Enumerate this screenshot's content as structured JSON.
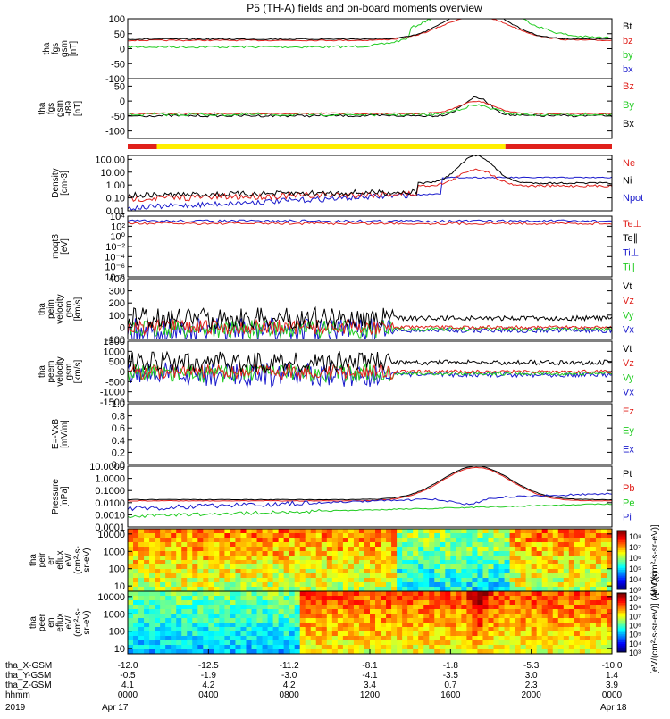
{
  "title": "P5 (TH-A) fields and on-board moments overview",
  "colors": {
    "black": "#000000",
    "red": "#e0201b",
    "green": "#22cc22",
    "blue": "#1a1acc",
    "yellow": "#ffee00"
  },
  "chart_data": [
    {
      "id": "fgs_gsm",
      "type": "line",
      "ylabel": [
        "tha",
        "fgs",
        "gsm",
        "[nT]"
      ],
      "ylim": [
        -100,
        100
      ],
      "yticks": [
        "100",
        "50",
        "0",
        "-50",
        "-100"
      ],
      "yticks_values": [
        100,
        50,
        0,
        -50,
        -100
      ],
      "legend": [
        {
          "label": "Bt",
          "color": "black"
        },
        {
          "label": "bz",
          "color": "red"
        },
        {
          "label": "by",
          "color": "green"
        },
        {
          "label": "bx",
          "color": "blue"
        }
      ]
    },
    {
      "id": "fgs_gsm_t89",
      "type": "line",
      "ylabel": [
        "tha",
        "fgs",
        "gsm",
        "-t89",
        "[nT]"
      ],
      "ylim": [
        -125,
        75
      ],
      "yticks": [
        "50",
        "0",
        "-50",
        "-100"
      ],
      "yticks_values": [
        50,
        0,
        -50,
        -100
      ],
      "legend": [
        {
          "label": "Bz",
          "color": "red"
        },
        {
          "label": "By",
          "color": "green"
        },
        {
          "label": "Bx",
          "color": "black"
        }
      ]
    },
    {
      "id": "density",
      "type": "line",
      "scale": "log",
      "ylabel": [
        "Density",
        "[cm-3]"
      ],
      "ylim": [
        0.01,
        200
      ],
      "yticks": [
        "100.00",
        "10.00",
        "1.00",
        "0.10",
        "0.01"
      ],
      "yticks_values": [
        100,
        10,
        1,
        0.1,
        0.01
      ],
      "legend": [
        {
          "label": "Ne",
          "color": "red"
        },
        {
          "label": "Ni",
          "color": "black"
        },
        {
          "label": "Npot",
          "color": "blue"
        }
      ]
    },
    {
      "id": "temperature",
      "type": "line",
      "scale": "log",
      "ylabel": [
        "moqt3",
        "[eV]"
      ],
      "ylim": [
        1e-08,
        10000.0
      ],
      "yticks": [
        "10⁴",
        "10²",
        "10⁰",
        "10⁻²",
        "10⁻⁴",
        "10⁻⁶",
        "10⁻⁸"
      ],
      "yticks_values": [
        4,
        2,
        0,
        -2,
        -4,
        -6,
        -8
      ],
      "legend": [
        {
          "label": "Te⊥",
          "color": "red"
        },
        {
          "label": "Te∥",
          "color": "black"
        },
        {
          "label": "Ti⊥",
          "color": "blue"
        },
        {
          "label": "Ti∥",
          "color": "green"
        }
      ]
    },
    {
      "id": "peim_velocity",
      "type": "line",
      "ylabel": [
        "tha",
        "peim",
        "velocity",
        "gsm",
        "[km/s]"
      ],
      "ylim": [
        -100,
        400
      ],
      "yticks": [
        "400",
        "300",
        "200",
        "100",
        "0",
        "-100"
      ],
      "yticks_values": [
        400,
        300,
        200,
        100,
        0,
        -100
      ],
      "legend": [
        {
          "label": "Vt",
          "color": "black"
        },
        {
          "label": "Vz",
          "color": "red"
        },
        {
          "label": "Vy",
          "color": "green"
        },
        {
          "label": "Vx",
          "color": "blue"
        }
      ]
    },
    {
      "id": "peem_velocity",
      "type": "line",
      "ylabel": [
        "tha",
        "peem",
        "velocity",
        "gsm",
        "[km/s]"
      ],
      "ylim": [
        -1500,
        1500
      ],
      "yticks": [
        "1500",
        "1000",
        "500",
        "0",
        "-500",
        "-1000",
        "-1500"
      ],
      "yticks_values": [
        1500,
        1000,
        500,
        0,
        -500,
        -1000,
        -1500
      ],
      "legend": [
        {
          "label": "Vt",
          "color": "black"
        },
        {
          "label": "Vz",
          "color": "red"
        },
        {
          "label": "Vy",
          "color": "green"
        },
        {
          "label": "Vx",
          "color": "blue"
        }
      ]
    },
    {
      "id": "efield",
      "type": "line",
      "ylabel": [
        "E=-VxB",
        "[mV/m]"
      ],
      "ylim": [
        0,
        1
      ],
      "yticks": [
        "1.0",
        "0.8",
        "0.6",
        "0.4",
        "0.2",
        "0.0"
      ],
      "yticks_values": [
        1,
        0.8,
        0.6,
        0.4,
        0.2,
        0
      ],
      "legend": [
        {
          "label": "Ez",
          "color": "red"
        },
        {
          "label": "Ey",
          "color": "green"
        },
        {
          "label": "Ex",
          "color": "blue"
        }
      ]
    },
    {
      "id": "pressure",
      "type": "line",
      "scale": "log",
      "ylabel": [
        "Pressure",
        "[nPa]"
      ],
      "ylim": [
        0.0001,
        10
      ],
      "yticks": [
        "10.0000",
        "1.0000",
        "0.1000",
        "0.0100",
        "0.0010",
        "0.0001"
      ],
      "yticks_values": [
        10,
        1,
        0.1,
        0.01,
        0.001,
        0.0001
      ],
      "legend": [
        {
          "label": "Pt",
          "color": "black"
        },
        {
          "label": "Pb",
          "color": "red"
        },
        {
          "label": "Pe",
          "color": "green"
        },
        {
          "label": "Pi",
          "color": "blue"
        }
      ]
    },
    {
      "id": "peir_spectrogram",
      "type": "heatmap",
      "scale": "log",
      "ylabel": [
        "tha",
        "peir",
        "en",
        "eflux",
        "eV/",
        "(cm²-s-",
        "sr-eV)"
      ],
      "ylim": [
        5,
        20000
      ],
      "yticks": [
        "10000",
        "1000",
        "100",
        "10"
      ],
      "yticks_values": [
        10000,
        1000,
        100,
        10
      ],
      "colorbar": {
        "label": "[eV/(cm²-s-sr-eV)]",
        "ticks": [
          "10⁸",
          "10⁷",
          "10⁶",
          "10⁵",
          "10⁴",
          "10³"
        ],
        "tick_values": [
          8,
          7,
          6,
          5,
          4,
          3
        ],
        "range": [
          3,
          8.5
        ]
      }
    },
    {
      "id": "peer_spectrogram",
      "type": "heatmap",
      "scale": "log",
      "ylabel": [
        "tha",
        "peer",
        "en",
        "eflux",
        "eV/",
        "(cm²-s-",
        "sr-eV)"
      ],
      "ylim": [
        5,
        20000
      ],
      "yticks": [
        "10000",
        "1000",
        "100",
        "10"
      ],
      "yticks_values": [
        10000,
        1000,
        100,
        10
      ],
      "colorbar": {
        "label": "[eV/(cm²-s-sr-eV)] (All Qs)",
        "ticks": [
          "10⁹",
          "10⁸",
          "10⁷",
          "10⁶",
          "10⁵",
          "10⁴",
          "10³"
        ],
        "tick_values": [
          9,
          8,
          7,
          6,
          5,
          4,
          3
        ],
        "range": [
          3,
          9.5
        ]
      }
    }
  ],
  "mode_bar": {
    "segments": [
      {
        "start": 0.0,
        "end": 0.06,
        "color": "red"
      },
      {
        "start": 0.06,
        "end": 0.78,
        "color": "yellow"
      },
      {
        "start": 0.78,
        "end": 1.0,
        "color": "red"
      }
    ]
  },
  "x_axis": {
    "tick_values_hours": [
      0,
      4,
      8,
      12,
      16,
      20,
      24
    ],
    "rows": [
      {
        "label": "tha_X-GSM",
        "values": [
          "-12.0",
          "-12.5",
          "-11.2",
          "-8.1",
          "-1.8",
          "-5.3",
          "-10.0"
        ]
      },
      {
        "label": "tha_Y-GSM",
        "values": [
          "-0.5",
          "-1.9",
          "-3.0",
          "-4.1",
          "-3.5",
          "3.0",
          "1.4"
        ]
      },
      {
        "label": "tha_Z-GSM",
        "values": [
          "4.1",
          "4.2",
          "4.2",
          "3.4",
          "0.7",
          "2.3",
          "3.9"
        ]
      },
      {
        "label": "hhmm",
        "values": [
          "0000",
          "0400",
          "0800",
          "1200",
          "1600",
          "2000",
          "0000"
        ]
      }
    ],
    "year": "2019",
    "date_start": "Apr 17",
    "date_end": "Apr 18"
  }
}
